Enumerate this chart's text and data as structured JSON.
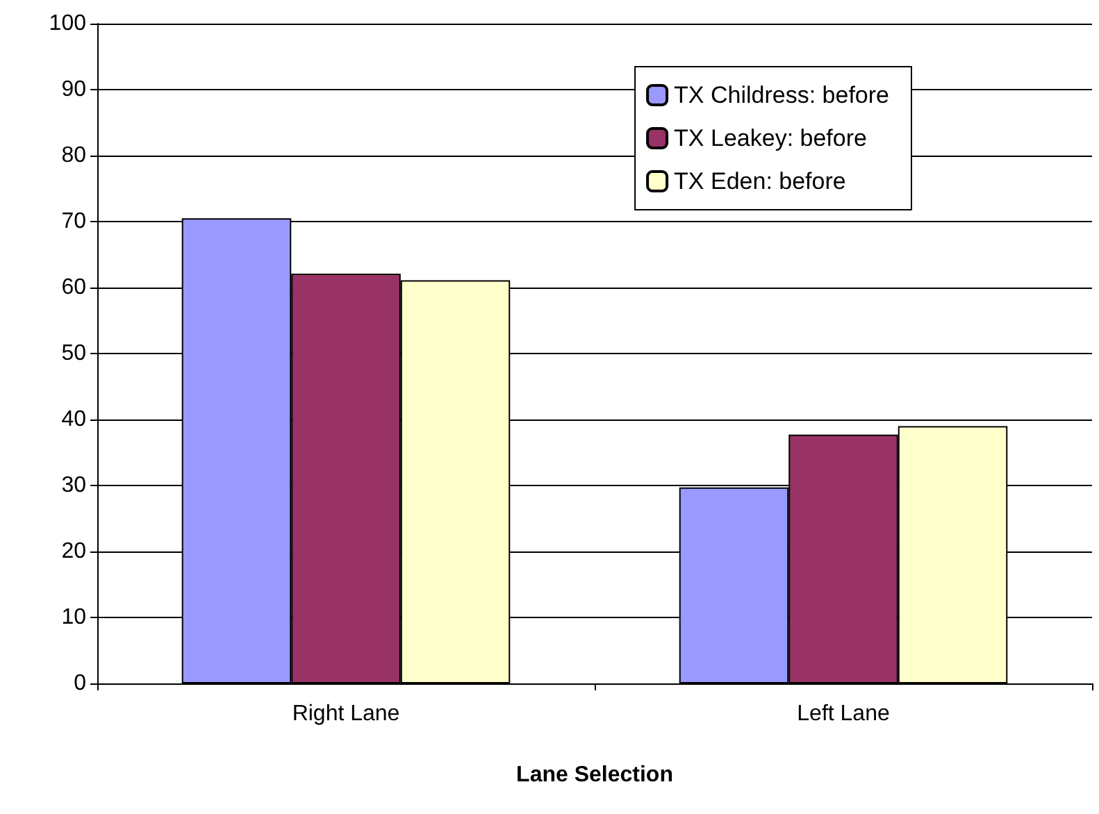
{
  "chart_data": {
    "type": "bar",
    "xlabel": "Lane Selection",
    "categories": [
      "Right Lane",
      "Left Lane"
    ],
    "series": [
      {
        "name": "TX Childress: before",
        "color": "#9999ff",
        "values": [
          70.5,
          29.7
        ]
      },
      {
        "name": "TX Leakey: before",
        "color": "#993366",
        "values": [
          62.1,
          37.7
        ]
      },
      {
        "name": "TX Eden: before",
        "color": "#ffffcc",
        "values": [
          61.1,
          39.0
        ]
      }
    ],
    "ylim": [
      0,
      100
    ],
    "yticks": [
      0,
      10,
      20,
      30,
      40,
      50,
      60,
      70,
      80,
      90,
      100
    ],
    "grid": "y",
    "legend": "top right"
  }
}
